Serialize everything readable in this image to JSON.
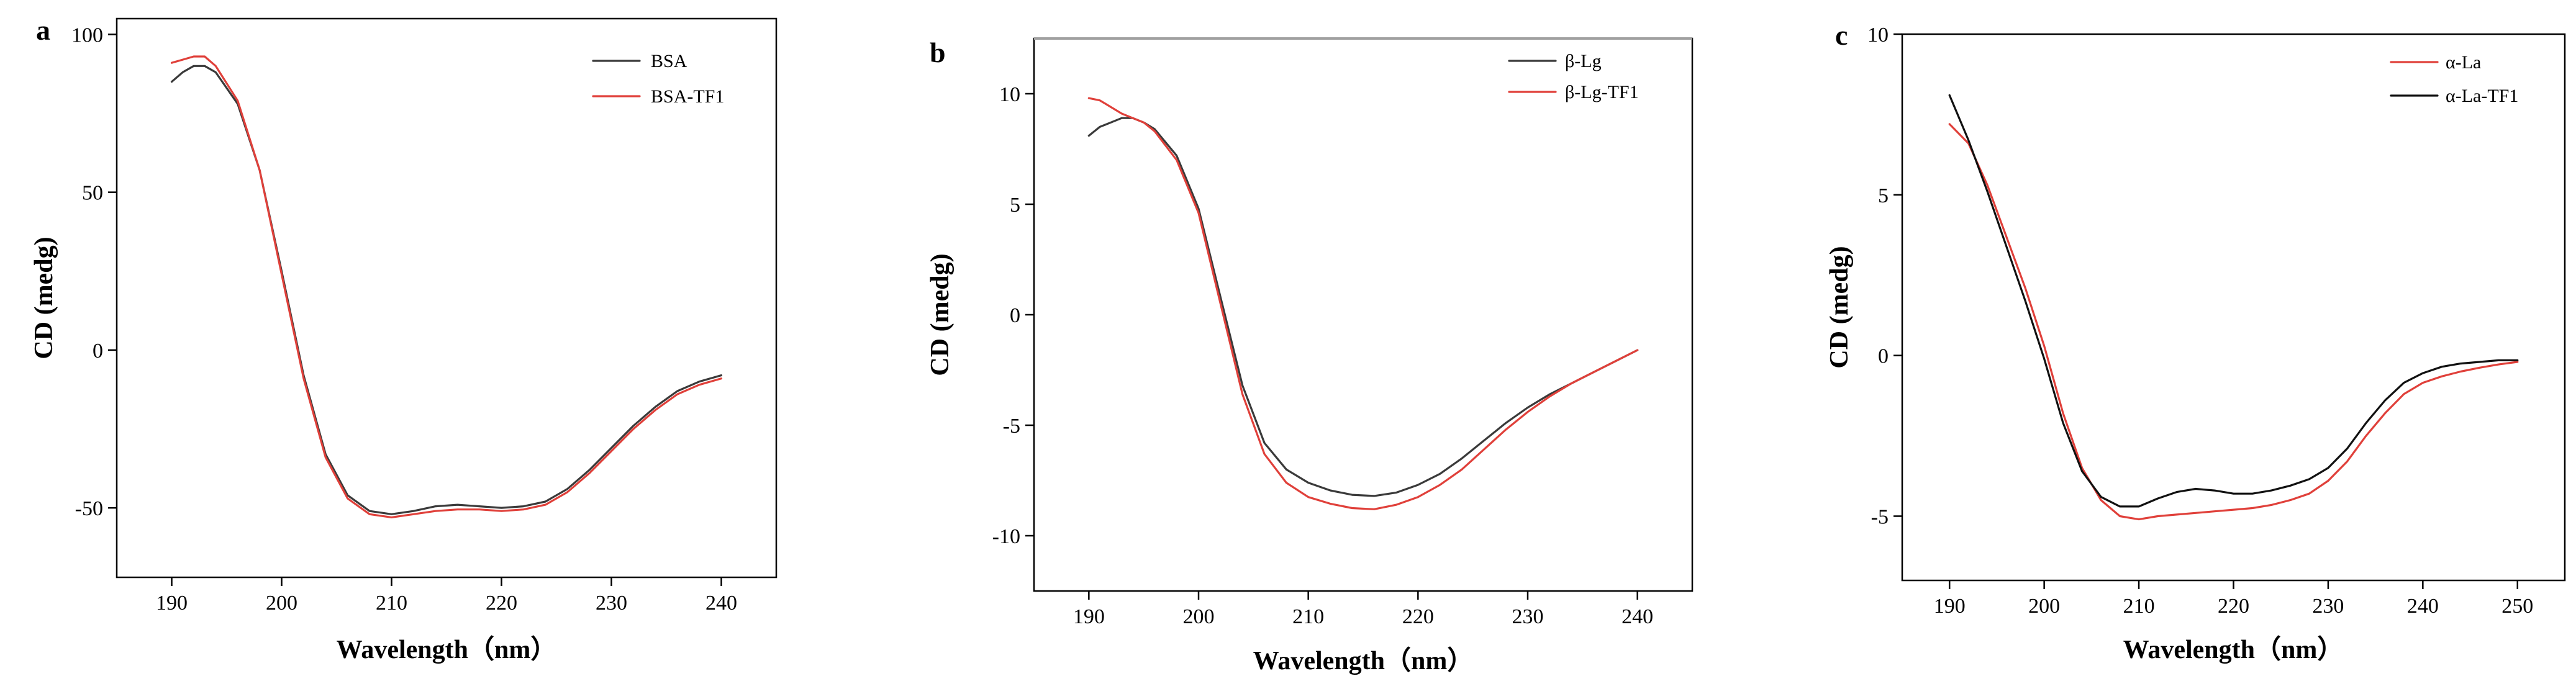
{
  "figure": {
    "colors": {
      "black_series": "#3a3a3a",
      "red_series": "#e0403a",
      "top_rule": "#a0a0a0"
    }
  },
  "chart_data": [
    {
      "type": "line",
      "panel": "a",
      "xlabel": "Wavelength（nm）",
      "ylabel": "CD (medg)",
      "xlim": [
        185,
        245
      ],
      "ylim": [
        -72,
        105
      ],
      "xticks": [
        190,
        200,
        210,
        220,
        230,
        240
      ],
      "yticks": [
        -50,
        0,
        50,
        100
      ],
      "legend_position": "top-right",
      "series": [
        {
          "name": "BSA",
          "color": "#3a3a3a",
          "x": [
            190,
            191,
            192,
            193,
            194,
            196,
            198,
            200,
            202,
            204,
            206,
            208,
            210,
            212,
            214,
            216,
            218,
            220,
            222,
            224,
            226,
            228,
            230,
            232,
            234,
            236,
            238,
            240
          ],
          "y": [
            85,
            88,
            90,
            90,
            88,
            78,
            57,
            25,
            -8,
            -33,
            -46,
            -51,
            -52,
            -51,
            -49.5,
            -49,
            -49.5,
            -50,
            -49.5,
            -48,
            -44,
            -38,
            -31,
            -24,
            -18,
            -13,
            -10,
            -8
          ]
        },
        {
          "name": "BSA-TF1",
          "color": "#e0403a",
          "x": [
            190,
            191,
            192,
            193,
            194,
            196,
            198,
            200,
            202,
            204,
            206,
            208,
            210,
            212,
            214,
            216,
            218,
            220,
            222,
            224,
            226,
            228,
            230,
            232,
            234,
            236,
            238,
            240
          ],
          "y": [
            91,
            92,
            93,
            93,
            90,
            79,
            57,
            24,
            -9,
            -34,
            -47,
            -52,
            -53,
            -52,
            -51,
            -50.5,
            -50.5,
            -51,
            -50.5,
            -49,
            -45,
            -39,
            -32,
            -25,
            -19,
            -14,
            -11,
            -9
          ]
        }
      ]
    },
    {
      "type": "line",
      "panel": "b",
      "xlabel": "Wavelength（nm）",
      "ylabel": "CD (medg)",
      "xlim": [
        185,
        245
      ],
      "ylim": [
        -12.5,
        12.5
      ],
      "xticks": [
        190,
        200,
        210,
        220,
        230,
        240
      ],
      "yticks": [
        -10,
        -5,
        0,
        5,
        10
      ],
      "legend_position": "top-right",
      "series": [
        {
          "name": "β-Lg",
          "color": "#3a3a3a",
          "x": [
            190,
            191,
            192,
            193,
            194,
            195,
            196,
            198,
            200,
            202,
            204,
            206,
            208,
            210,
            212,
            214,
            216,
            218,
            220,
            222,
            224,
            226,
            228,
            230,
            232,
            234,
            236,
            238,
            240
          ],
          "y": [
            8.1,
            8.5,
            8.7,
            8.9,
            8.9,
            8.7,
            8.4,
            7.2,
            4.8,
            0.8,
            -3.2,
            -5.8,
            -7.0,
            -7.6,
            -7.95,
            -8.15,
            -8.2,
            -8.05,
            -7.7,
            -7.2,
            -6.5,
            -5.7,
            -4.9,
            -4.2,
            -3.6,
            -3.1,
            -2.6,
            -2.1,
            -1.6
          ]
        },
        {
          "name": "β-Lg-TF1",
          "color": "#e0403a",
          "x": [
            190,
            191,
            192,
            193,
            194,
            195,
            196,
            198,
            200,
            202,
            204,
            206,
            208,
            210,
            212,
            214,
            216,
            218,
            220,
            222,
            224,
            226,
            228,
            230,
            232,
            234,
            236,
            238,
            240
          ],
          "y": [
            9.8,
            9.7,
            9.4,
            9.1,
            8.9,
            8.7,
            8.3,
            7.0,
            4.6,
            0.5,
            -3.6,
            -6.3,
            -7.6,
            -8.25,
            -8.55,
            -8.75,
            -8.8,
            -8.6,
            -8.25,
            -7.7,
            -7.0,
            -6.1,
            -5.2,
            -4.4,
            -3.7,
            -3.1,
            -2.6,
            -2.1,
            -1.6
          ]
        }
      ]
    },
    {
      "type": "line",
      "panel": "c",
      "xlabel": "Wavelength（nm）",
      "ylabel": "CD (medg)",
      "xlim": [
        185,
        255
      ],
      "ylim": [
        -7,
        10
      ],
      "xticks": [
        190,
        200,
        210,
        220,
        230,
        240,
        250
      ],
      "yticks": [
        -5,
        0,
        5,
        10
      ],
      "legend_position": "top-right",
      "series": [
        {
          "name": "α-La",
          "color": "#e0403a",
          "x": [
            190,
            192,
            194,
            196,
            198,
            200,
            202,
            204,
            206,
            208,
            210,
            212,
            214,
            216,
            218,
            220,
            222,
            224,
            226,
            228,
            230,
            232,
            234,
            236,
            238,
            240,
            242,
            244,
            246,
            248,
            250
          ],
          "y": [
            7.2,
            6.6,
            5.3,
            3.7,
            2.1,
            0.3,
            -1.8,
            -3.5,
            -4.5,
            -5.0,
            -5.1,
            -5.0,
            -4.95,
            -4.9,
            -4.85,
            -4.8,
            -4.75,
            -4.65,
            -4.5,
            -4.3,
            -3.9,
            -3.3,
            -2.5,
            -1.8,
            -1.2,
            -0.85,
            -0.65,
            -0.5,
            -0.38,
            -0.28,
            -0.2
          ]
        },
        {
          "name": "α-La-TF1",
          "color": "#111111",
          "x": [
            190,
            192,
            194,
            196,
            198,
            200,
            202,
            204,
            206,
            208,
            210,
            212,
            214,
            216,
            218,
            220,
            222,
            224,
            226,
            228,
            230,
            232,
            234,
            236,
            238,
            240,
            242,
            244,
            246,
            248,
            250
          ],
          "y": [
            8.1,
            6.7,
            5.1,
            3.4,
            1.7,
            -0.1,
            -2.1,
            -3.6,
            -4.4,
            -4.7,
            -4.7,
            -4.45,
            -4.25,
            -4.15,
            -4.2,
            -4.3,
            -4.3,
            -4.2,
            -4.05,
            -3.85,
            -3.5,
            -2.9,
            -2.1,
            -1.4,
            -0.85,
            -0.55,
            -0.35,
            -0.25,
            -0.2,
            -0.15,
            -0.15
          ]
        }
      ]
    }
  ]
}
